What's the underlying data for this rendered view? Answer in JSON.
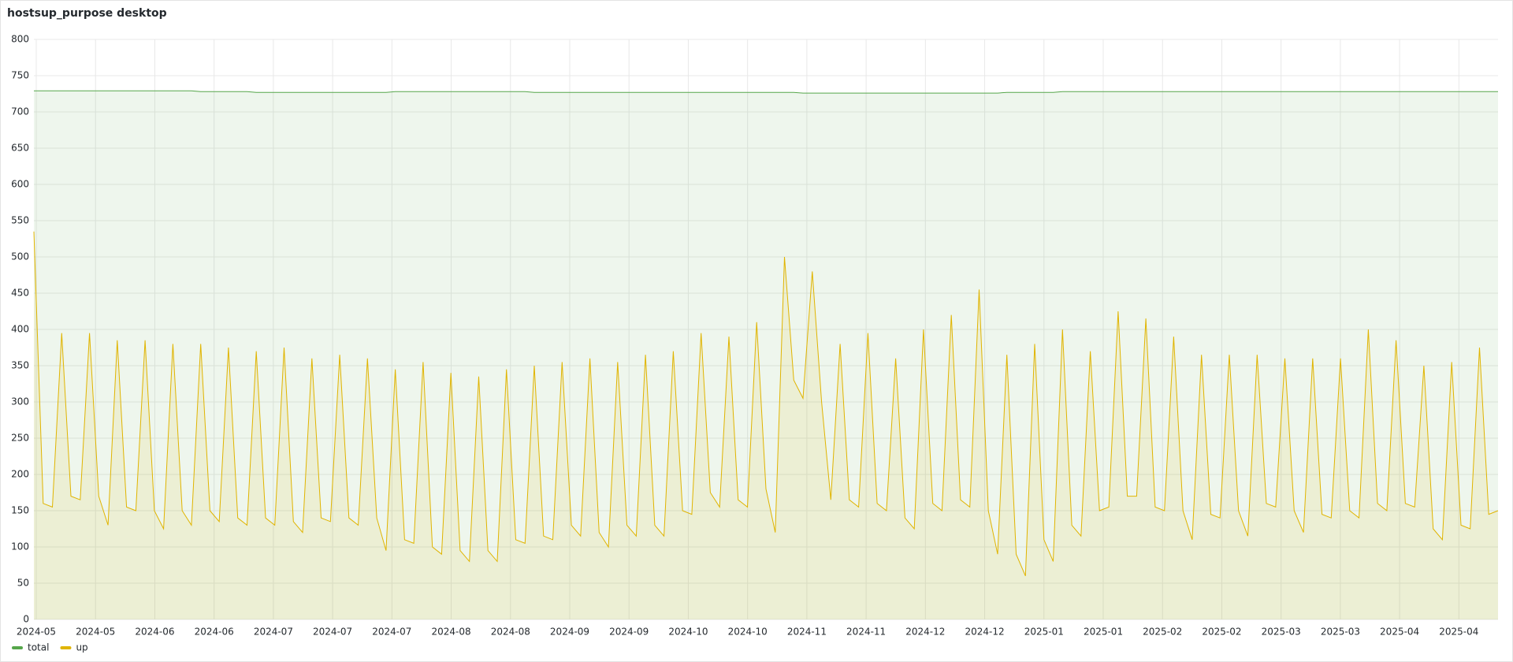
{
  "chart_data": {
    "type": "line",
    "title": "hostsup_purpose desktop",
    "ylim": [
      0,
      800
    ],
    "yticks": [
      0,
      50,
      100,
      150,
      200,
      250,
      300,
      350,
      400,
      450,
      500,
      550,
      600,
      650,
      700,
      750,
      800
    ],
    "xticks": [
      "2024-05",
      "2024-05",
      "2024-06",
      "2024-06",
      "2024-07",
      "2024-07",
      "2024-07",
      "2024-08",
      "2024-08",
      "2024-09",
      "2024-09",
      "2024-10",
      "2024-10",
      "2024-11",
      "2024-11",
      "2024-12",
      "2024-12",
      "2025-01",
      "2025-01",
      "2025-02",
      "2025-02",
      "2025-03",
      "2025-03",
      "2025-04",
      "2025-04"
    ],
    "grid": true,
    "legend": "bottom-left",
    "series": [
      {
        "name": "total",
        "color": "#56a64b",
        "values": [
          729,
          729,
          729,
          729,
          729,
          729,
          729,
          729,
          729,
          729,
          729,
          729,
          729,
          729,
          729,
          729,
          729,
          729,
          728,
          728,
          728,
          728,
          728,
          728,
          727,
          727,
          727,
          727,
          727,
          727,
          727,
          727,
          727,
          727,
          727,
          727,
          727,
          727,
          727,
          728,
          728,
          728,
          728,
          728,
          728,
          728,
          728,
          728,
          728,
          728,
          728,
          728,
          728,
          728,
          727,
          727,
          727,
          727,
          727,
          727,
          727,
          727,
          727,
          727,
          727,
          727,
          727,
          727,
          727,
          727,
          727,
          727,
          727,
          727,
          727,
          727,
          727,
          727,
          727,
          727,
          727,
          727,
          727,
          726,
          726,
          726,
          726,
          726,
          726,
          726,
          726,
          726,
          726,
          726,
          726,
          726,
          726,
          726,
          726,
          726,
          726,
          726,
          726,
          726,
          726,
          727,
          727,
          727,
          727,
          727,
          727,
          728,
          728,
          728,
          728,
          728,
          728,
          728,
          728,
          728,
          728,
          728,
          728,
          728,
          728,
          728,
          728,
          728,
          728,
          728,
          728,
          728,
          728,
          728,
          728,
          728,
          728,
          728,
          728,
          728,
          728,
          728,
          728,
          728,
          728,
          728,
          728,
          728,
          728,
          728,
          728,
          728,
          728,
          728,
          728,
          728,
          728,
          728,
          728
        ]
      },
      {
        "name": "up",
        "color": "#e0b400",
        "values": [
          535,
          160,
          155,
          395,
          170,
          165,
          395,
          170,
          130,
          385,
          155,
          150,
          385,
          150,
          125,
          380,
          150,
          130,
          380,
          150,
          135,
          375,
          140,
          130,
          370,
          140,
          130,
          375,
          135,
          120,
          360,
          140,
          135,
          365,
          140,
          130,
          360,
          140,
          95,
          345,
          110,
          105,
          355,
          100,
          90,
          340,
          95,
          80,
          335,
          95,
          80,
          345,
          110,
          105,
          350,
          115,
          110,
          355,
          130,
          115,
          360,
          120,
          100,
          355,
          130,
          115,
          365,
          130,
          115,
          370,
          150,
          145,
          395,
          175,
          155,
          390,
          165,
          155,
          410,
          180,
          120,
          500,
          330,
          305,
          480,
          300,
          165,
          380,
          165,
          155,
          395,
          160,
          150,
          360,
          140,
          125,
          400,
          160,
          150,
          420,
          165,
          155,
          455,
          150,
          90,
          365,
          90,
          60,
          380,
          110,
          80,
          400,
          130,
          115,
          370,
          150,
          155,
          425,
          170,
          170,
          415,
          155,
          150,
          390,
          150,
          110,
          365,
          145,
          140,
          365,
          150,
          115,
          365,
          160,
          155,
          360,
          150,
          120,
          360,
          145,
          140,
          360,
          150,
          140,
          400,
          160,
          150,
          385,
          160,
          155,
          350,
          125,
          110,
          355,
          130,
          125,
          375,
          145,
          150
        ]
      }
    ]
  }
}
